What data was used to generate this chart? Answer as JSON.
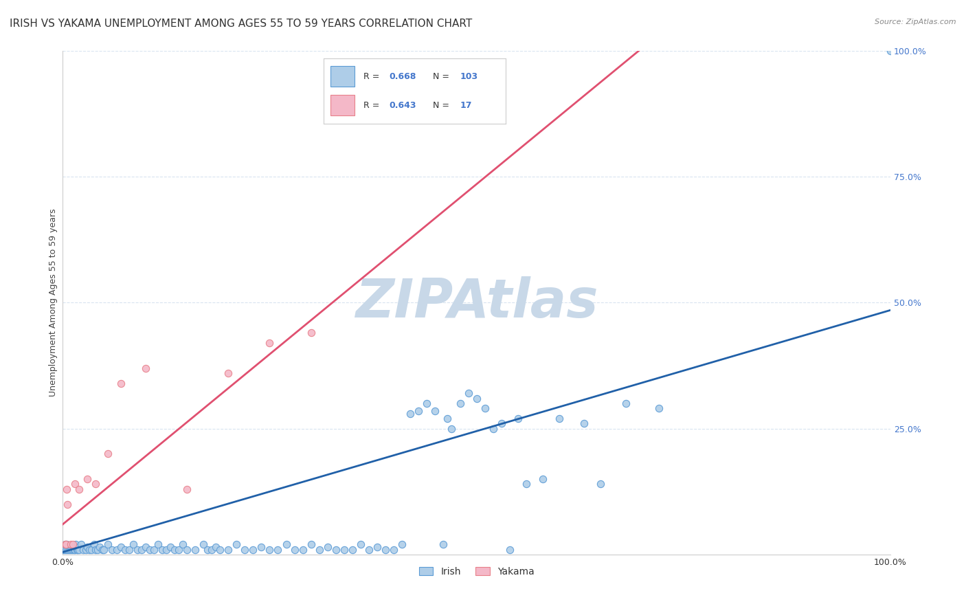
{
  "title": "IRISH VS YAKAMA UNEMPLOYMENT AMONG AGES 55 TO 59 YEARS CORRELATION CHART",
  "source": "Source: ZipAtlas.com",
  "ylabel": "Unemployment Among Ages 55 to 59 years",
  "xlim": [
    0,
    1
  ],
  "ylim": [
    0,
    1
  ],
  "xticks": [
    0,
    0.25,
    0.5,
    0.75,
    1.0
  ],
  "xticklabels": [
    "0.0%",
    "",
    "",
    "",
    "100.0%"
  ],
  "yticks": [
    0.25,
    0.5,
    0.75,
    1.0
  ],
  "yticklabels": [
    "25.0%",
    "50.0%",
    "75.0%",
    "100.0%"
  ],
  "irish_color": "#aecde8",
  "irish_edge_color": "#5b9bd5",
  "yakama_color": "#f4b8c8",
  "yakama_edge_color": "#e8808a",
  "irish_line_color": "#2060a8",
  "yakama_line_color": "#e05070",
  "irish_R": 0.668,
  "irish_N": 103,
  "yakama_R": 0.643,
  "yakama_N": 17,
  "irish_slope": 0.48,
  "irish_intercept": 0.005,
  "yakama_slope": 1.35,
  "yakama_intercept": 0.06,
  "watermark": "ZIPAtlas",
  "watermark_color": "#c8d8e8",
  "legend_R_N_color": "#4477cc",
  "background_color": "#ffffff",
  "grid_color": "#d8e4f0",
  "title_fontsize": 11,
  "axis_label_fontsize": 9,
  "tick_fontsize": 9,
  "irish_points": [
    [
      0.001,
      0.01
    ],
    [
      0.002,
      0.01
    ],
    [
      0.003,
      0.02
    ],
    [
      0.004,
      0.01
    ],
    [
      0.005,
      0.02
    ],
    [
      0.006,
      0.01
    ],
    [
      0.007,
      0.01
    ],
    [
      0.008,
      0.015
    ],
    [
      0.009,
      0.01
    ],
    [
      0.01,
      0.015
    ],
    [
      0.011,
      0.01
    ],
    [
      0.012,
      0.01
    ],
    [
      0.013,
      0.015
    ],
    [
      0.014,
      0.01
    ],
    [
      0.015,
      0.01
    ],
    [
      0.016,
      0.02
    ],
    [
      0.017,
      0.01
    ],
    [
      0.018,
      0.01
    ],
    [
      0.019,
      0.015
    ],
    [
      0.02,
      0.01
    ],
    [
      0.022,
      0.02
    ],
    [
      0.025,
      0.01
    ],
    [
      0.028,
      0.01
    ],
    [
      0.03,
      0.015
    ],
    [
      0.032,
      0.01
    ],
    [
      0.035,
      0.01
    ],
    [
      0.038,
      0.02
    ],
    [
      0.04,
      0.01
    ],
    [
      0.042,
      0.01
    ],
    [
      0.045,
      0.015
    ],
    [
      0.048,
      0.01
    ],
    [
      0.05,
      0.01
    ],
    [
      0.055,
      0.02
    ],
    [
      0.06,
      0.01
    ],
    [
      0.065,
      0.01
    ],
    [
      0.07,
      0.015
    ],
    [
      0.075,
      0.01
    ],
    [
      0.08,
      0.01
    ],
    [
      0.085,
      0.02
    ],
    [
      0.09,
      0.01
    ],
    [
      0.095,
      0.01
    ],
    [
      0.1,
      0.015
    ],
    [
      0.105,
      0.01
    ],
    [
      0.11,
      0.01
    ],
    [
      0.115,
      0.02
    ],
    [
      0.12,
      0.01
    ],
    [
      0.125,
      0.01
    ],
    [
      0.13,
      0.015
    ],
    [
      0.135,
      0.01
    ],
    [
      0.14,
      0.01
    ],
    [
      0.145,
      0.02
    ],
    [
      0.15,
      0.01
    ],
    [
      0.16,
      0.01
    ],
    [
      0.17,
      0.02
    ],
    [
      0.175,
      0.01
    ],
    [
      0.18,
      0.01
    ],
    [
      0.185,
      0.015
    ],
    [
      0.19,
      0.01
    ],
    [
      0.2,
      0.01
    ],
    [
      0.21,
      0.02
    ],
    [
      0.22,
      0.01
    ],
    [
      0.23,
      0.01
    ],
    [
      0.24,
      0.015
    ],
    [
      0.25,
      0.01
    ],
    [
      0.26,
      0.01
    ],
    [
      0.27,
      0.02
    ],
    [
      0.28,
      0.01
    ],
    [
      0.29,
      0.01
    ],
    [
      0.3,
      0.02
    ],
    [
      0.31,
      0.01
    ],
    [
      0.32,
      0.015
    ],
    [
      0.33,
      0.01
    ],
    [
      0.34,
      0.01
    ],
    [
      0.35,
      0.01
    ],
    [
      0.36,
      0.02
    ],
    [
      0.37,
      0.01
    ],
    [
      0.38,
      0.015
    ],
    [
      0.39,
      0.01
    ],
    [
      0.4,
      0.01
    ],
    [
      0.41,
      0.02
    ],
    [
      0.42,
      0.28
    ],
    [
      0.43,
      0.285
    ],
    [
      0.44,
      0.3
    ],
    [
      0.45,
      0.285
    ],
    [
      0.46,
      0.02
    ],
    [
      0.465,
      0.27
    ],
    [
      0.47,
      0.25
    ],
    [
      0.48,
      0.3
    ],
    [
      0.49,
      0.32
    ],
    [
      0.5,
      0.31
    ],
    [
      0.51,
      0.29
    ],
    [
      0.52,
      0.25
    ],
    [
      0.53,
      0.26
    ],
    [
      0.54,
      0.01
    ],
    [
      0.55,
      0.27
    ],
    [
      0.56,
      0.14
    ],
    [
      0.58,
      0.15
    ],
    [
      0.6,
      0.27
    ],
    [
      0.63,
      0.26
    ],
    [
      0.65,
      0.14
    ],
    [
      0.68,
      0.3
    ],
    [
      0.72,
      0.29
    ],
    [
      1.0,
      1.0
    ]
  ],
  "yakama_points": [
    [
      0.003,
      0.02
    ],
    [
      0.004,
      0.02
    ],
    [
      0.005,
      0.13
    ],
    [
      0.006,
      0.1
    ],
    [
      0.01,
      0.02
    ],
    [
      0.012,
      0.02
    ],
    [
      0.015,
      0.14
    ],
    [
      0.02,
      0.13
    ],
    [
      0.03,
      0.15
    ],
    [
      0.04,
      0.14
    ],
    [
      0.055,
      0.2
    ],
    [
      0.07,
      0.34
    ],
    [
      0.1,
      0.37
    ],
    [
      0.15,
      0.13
    ],
    [
      0.2,
      0.36
    ],
    [
      0.25,
      0.42
    ],
    [
      0.3,
      0.44
    ]
  ]
}
